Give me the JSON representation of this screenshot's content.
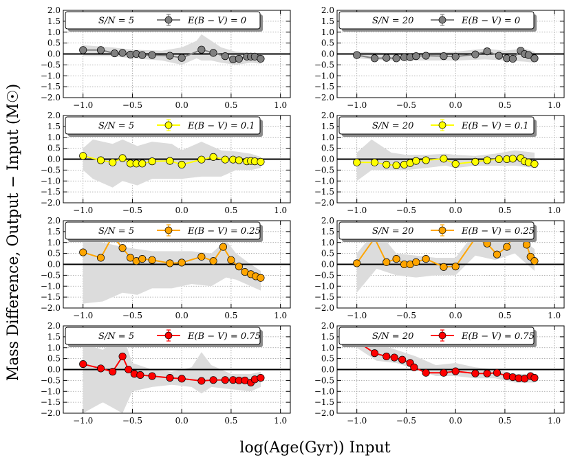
{
  "figure": {
    "xlabel": "log(Age(Gyr)) Input",
    "ylabel": "Mass Difference, Output − Input (M☉)"
  },
  "colors": {
    "grid": "#9a9a9a",
    "band": "#dcdcdc",
    "zero_line": "#000000",
    "legend_shadow": "#8c8c8c"
  },
  "chart_data": [
    {
      "type": "line",
      "panel": "r0c0",
      "row": 0,
      "col": 0,
      "sn_label": "S/N = 5",
      "ebv_label": "E(B − V) = 0",
      "color": "#808080",
      "xlim": [
        -1.2,
        1.1
      ],
      "ylim": [
        -2.0,
        2.0
      ],
      "x": [
        -1.0,
        -0.82,
        -0.68,
        -0.6,
        -0.52,
        -0.46,
        -0.4,
        -0.3,
        -0.12,
        0.0,
        0.2,
        0.32,
        0.44,
        0.52,
        0.58,
        0.66,
        0.7,
        0.74,
        0.8
      ],
      "y": [
        0.18,
        0.18,
        0.03,
        0.05,
        -0.03,
        0.0,
        -0.05,
        -0.05,
        -0.08,
        -0.18,
        0.2,
        0.05,
        -0.1,
        -0.25,
        -0.22,
        -0.12,
        -0.12,
        -0.12,
        -0.22
      ],
      "band_x": [
        -1.0,
        -0.7,
        -0.5,
        -0.2,
        0.0,
        0.15,
        0.2,
        0.3,
        0.4,
        0.55,
        0.7,
        0.8
      ],
      "band_upper": [
        0.4,
        0.3,
        0.2,
        0.15,
        0.3,
        0.6,
        0.9,
        0.6,
        0.3,
        0.1,
        0.05,
        0.0
      ],
      "band_lower": [
        -0.1,
        -0.1,
        -0.2,
        -0.3,
        -0.5,
        -0.2,
        -0.3,
        -0.3,
        -0.4,
        -0.5,
        -0.4,
        -0.45
      ],
      "xticks": [
        "−1.0",
        "−0.5",
        "0.0",
        "0.5",
        "1.0"
      ],
      "yticks": [
        "2.0",
        "1.5",
        "1.0",
        "0.5",
        "0.0",
        "−0.5",
        "−1.0",
        "−1.5",
        "−2.0"
      ]
    },
    {
      "type": "line",
      "panel": "r0c1",
      "row": 0,
      "col": 1,
      "sn_label": "S/N = 20",
      "ebv_label": "E(B − V) = 0",
      "color": "#808080",
      "xlim": [
        -1.2,
        1.1
      ],
      "ylim": [
        -2.0,
        2.0
      ],
      "x": [
        -1.0,
        -0.82,
        -0.7,
        -0.6,
        -0.52,
        -0.46,
        -0.4,
        -0.3,
        -0.12,
        0.0,
        0.2,
        0.32,
        0.44,
        0.52,
        0.58,
        0.66,
        0.7,
        0.74,
        0.8
      ],
      "y": [
        -0.05,
        -0.2,
        -0.18,
        -0.2,
        -0.15,
        -0.15,
        -0.1,
        -0.08,
        -0.1,
        -0.12,
        -0.02,
        0.12,
        -0.08,
        -0.2,
        -0.22,
        0.15,
        0.0,
        -0.05,
        -0.2
      ],
      "band_x": [
        -1.0,
        -0.7,
        -0.4,
        0.0,
        0.3,
        0.5,
        0.7,
        0.8
      ],
      "band_upper": [
        0.1,
        0.05,
        0.05,
        0.1,
        0.25,
        0.15,
        0.25,
        0.1
      ],
      "band_lower": [
        -0.2,
        -0.3,
        -0.3,
        -0.3,
        -0.25,
        -0.3,
        -0.35,
        -0.4
      ],
      "xticks": [
        "−1.0",
        "−0.5",
        "0.0",
        "0.5",
        "1.0"
      ],
      "yticks": [
        "2.0",
        "1.5",
        "1.0",
        "0.5",
        "0.0",
        "−0.5",
        "−1.0",
        "−1.5",
        "−2.0"
      ]
    },
    {
      "type": "line",
      "panel": "r1c0",
      "row": 1,
      "col": 0,
      "sn_label": "S/N = 5",
      "ebv_label": "E(B − V) = 0.1",
      "color": "#ffff00",
      "xlim": [
        -1.2,
        1.1
      ],
      "ylim": [
        -2.0,
        2.0
      ],
      "x": [
        -1.0,
        -0.82,
        -0.7,
        -0.6,
        -0.52,
        -0.46,
        -0.4,
        -0.3,
        -0.12,
        0.0,
        0.2,
        0.32,
        0.44,
        0.52,
        0.58,
        0.66,
        0.7,
        0.74,
        0.8
      ],
      "y": [
        0.15,
        -0.05,
        -0.15,
        0.05,
        -0.2,
        -0.2,
        -0.2,
        -0.1,
        -0.08,
        -0.25,
        -0.02,
        0.1,
        -0.02,
        -0.02,
        -0.05,
        -0.1,
        -0.08,
        -0.1,
        -0.12
      ],
      "band_x": [
        -1.0,
        -0.9,
        -0.7,
        -0.6,
        -0.45,
        -0.3,
        -0.1,
        0.0,
        0.2,
        0.4,
        0.55,
        0.7,
        0.8
      ],
      "band_upper": [
        0.5,
        0.9,
        0.7,
        0.9,
        0.6,
        0.8,
        0.7,
        0.4,
        0.8,
        0.4,
        0.35,
        0.25,
        0.1
      ],
      "band_lower": [
        -0.5,
        -0.9,
        -1.3,
        -1.0,
        -1.2,
        -0.9,
        -0.9,
        -0.9,
        -0.8,
        -0.8,
        -0.5,
        -0.5,
        -0.4
      ],
      "xticks": [
        "−1.0",
        "−0.5",
        "0.0",
        "0.5",
        "1.0"
      ],
      "yticks": [
        "2.0",
        "1.5",
        "1.0",
        "0.5",
        "0.0",
        "−0.5",
        "−1.0",
        "−1.5",
        "−2.0"
      ]
    },
    {
      "type": "line",
      "panel": "r1c1",
      "row": 1,
      "col": 1,
      "sn_label": "S/N = 20",
      "ebv_label": "E(B − V) = 0.1",
      "color": "#ffff00",
      "xlim": [
        -1.2,
        1.1
      ],
      "ylim": [
        -2.0,
        2.0
      ],
      "x": [
        -1.0,
        -0.82,
        -0.7,
        -0.6,
        -0.52,
        -0.46,
        -0.4,
        -0.3,
        -0.12,
        0.0,
        0.2,
        0.32,
        0.44,
        0.52,
        0.58,
        0.66,
        0.7,
        0.74,
        0.8
      ],
      "y": [
        -0.15,
        -0.15,
        -0.25,
        -0.28,
        -0.25,
        -0.18,
        -0.08,
        -0.05,
        0.02,
        -0.22,
        -0.12,
        -0.05,
        0.0,
        0.0,
        0.02,
        0.05,
        -0.1,
        -0.15,
        -0.22
      ],
      "band_x": [
        -1.0,
        -0.85,
        -0.65,
        -0.5,
        -0.3,
        -0.1,
        0.0,
        0.2,
        0.4,
        0.6,
        0.8
      ],
      "band_upper": [
        0.3,
        0.9,
        0.3,
        0.2,
        0.2,
        0.25,
        0.2,
        0.15,
        0.25,
        0.4,
        0.3
      ],
      "band_lower": [
        -1.0,
        -0.5,
        -0.5,
        -0.5,
        -0.4,
        -0.3,
        -0.4,
        -0.3,
        -0.3,
        -0.3,
        -0.4
      ],
      "xticks": [
        "−1.0",
        "−0.5",
        "0.0",
        "0.5",
        "1.0"
      ],
      "yticks": [
        "2.0",
        "1.5",
        "1.0",
        "0.5",
        "0.0",
        "−0.5",
        "−1.0",
        "−1.5",
        "−2.0"
      ]
    },
    {
      "type": "line",
      "panel": "r2c0",
      "row": 2,
      "col": 0,
      "sn_label": "S/N = 5",
      "ebv_label": "E(B − V) = 0.25",
      "color": "#ffa500",
      "xlim": [
        -1.2,
        1.1
      ],
      "ylim": [
        -2.0,
        2.0
      ],
      "x": [
        -1.0,
        -0.82,
        -0.7,
        -0.6,
        -0.52,
        -0.46,
        -0.4,
        -0.3,
        -0.12,
        0.0,
        0.2,
        0.32,
        0.42,
        0.5,
        0.58,
        0.64,
        0.7,
        0.75,
        0.8
      ],
      "y": [
        0.55,
        0.3,
        1.3,
        0.75,
        0.3,
        0.15,
        0.25,
        0.2,
        0.05,
        0.08,
        0.35,
        0.15,
        0.8,
        0.2,
        -0.1,
        -0.35,
        -0.45,
        -0.55,
        -0.62
      ],
      "band_x": [
        -1.0,
        -0.8,
        -0.6,
        -0.45,
        -0.3,
        -0.1,
        0.1,
        0.3,
        0.45,
        0.55,
        0.7,
        0.8
      ],
      "band_upper": [
        1.3,
        1.0,
        0.8,
        0.7,
        0.6,
        0.6,
        0.6,
        0.5,
        1.1,
        0.5,
        0.0,
        -0.3
      ],
      "band_lower": [
        -1.8,
        -1.7,
        -1.3,
        -1.4,
        -1.1,
        -1.1,
        -0.9,
        -1.0,
        -0.6,
        -0.7,
        -1.0,
        -1.2
      ],
      "xticks": [
        "−1.0",
        "−0.5",
        "0.0",
        "0.5",
        "1.0"
      ],
      "yticks": [
        "2.0",
        "1.5",
        "1.0",
        "0.5",
        "0.0",
        "−0.5",
        "−1.0",
        "−1.5",
        "−2.0"
      ]
    },
    {
      "type": "line",
      "panel": "r2c1",
      "row": 2,
      "col": 1,
      "sn_label": "S/N = 20",
      "ebv_label": "E(B − V) = 0.25",
      "color": "#ffa500",
      "xlim": [
        -1.2,
        1.1
      ],
      "ylim": [
        -2.0,
        2.0
      ],
      "x": [
        -1.0,
        -0.82,
        -0.7,
        -0.6,
        -0.52,
        -0.46,
        -0.4,
        -0.3,
        -0.12,
        0.0,
        0.2,
        0.32,
        0.42,
        0.52,
        0.58,
        0.66,
        0.72,
        0.76,
        0.8
      ],
      "y": [
        0.05,
        1.2,
        0.1,
        0.25,
        0.0,
        0.0,
        0.1,
        0.25,
        -0.12,
        -0.1,
        1.2,
        0.95,
        0.45,
        0.8,
        1.25,
        1.3,
        0.9,
        0.35,
        0.15
      ],
      "band_x": [
        -1.0,
        -0.8,
        -0.6,
        -0.4,
        -0.2,
        0.0,
        0.2,
        0.4,
        0.6,
        0.8
      ],
      "band_upper": [
        0.5,
        1.6,
        0.5,
        0.4,
        0.3,
        0.3,
        1.5,
        1.2,
        1.4,
        0.7
      ],
      "band_lower": [
        -1.3,
        -0.2,
        -0.5,
        -0.6,
        -0.5,
        -0.5,
        0.4,
        0.2,
        0.5,
        -0.3
      ],
      "xticks": [
        "−1.0",
        "−0.5",
        "0.0",
        "0.5",
        "1.0"
      ],
      "yticks": [
        "2.0",
        "1.5",
        "1.0",
        "0.5",
        "0.0",
        "−0.5",
        "−1.0",
        "−1.5",
        "−2.0"
      ]
    },
    {
      "type": "line",
      "panel": "r3c0",
      "row": 3,
      "col": 0,
      "sn_label": "S/N = 5",
      "ebv_label": "E(B − V) = 0.75",
      "color": "#ff0000",
      "xlim": [
        -1.2,
        1.1
      ],
      "ylim": [
        -2.0,
        2.0
      ],
      "x": [
        -1.0,
        -0.82,
        -0.7,
        -0.6,
        -0.54,
        -0.48,
        -0.42,
        -0.3,
        -0.12,
        0.0,
        0.2,
        0.32,
        0.44,
        0.52,
        0.58,
        0.64,
        0.7,
        0.74,
        0.8
      ],
      "y": [
        0.25,
        0.05,
        -0.1,
        0.6,
        0.0,
        -0.2,
        -0.25,
        -0.3,
        -0.38,
        -0.42,
        -0.52,
        -0.48,
        -0.48,
        -0.48,
        -0.5,
        -0.5,
        -0.6,
        -0.45,
        -0.38
      ],
      "band_x": [
        -1.0,
        -0.8,
        -0.6,
        -0.5,
        -0.3,
        -0.1,
        0.1,
        0.2,
        0.3,
        0.5,
        0.7,
        0.8
      ],
      "band_upper": [
        1.2,
        0.9,
        1.6,
        0.3,
        0.0,
        -0.1,
        0.1,
        0.8,
        0.2,
        -0.2,
        -0.2,
        -0.1
      ],
      "band_lower": [
        -2.0,
        -1.5,
        -2.0,
        -1.0,
        -0.8,
        -0.7,
        -0.8,
        -1.1,
        -0.8,
        -0.9,
        -1.0,
        -0.8
      ],
      "xticks": [
        "−1.0",
        "−0.5",
        "0.0",
        "0.5",
        "1.0"
      ],
      "yticks": [
        "2.0",
        "1.5",
        "1.0",
        "0.5",
        "0.0",
        "−0.5",
        "−1.0",
        "−1.5",
        "−2.0"
      ]
    },
    {
      "type": "line",
      "panel": "r3c1",
      "row": 3,
      "col": 1,
      "sn_label": "S/N = 20",
      "ebv_label": "E(B − V) = 0.75",
      "color": "#ff0000",
      "xlim": [
        -1.2,
        1.1
      ],
      "ylim": [
        -2.0,
        2.0
      ],
      "x": [
        -1.0,
        -0.82,
        -0.7,
        -0.62,
        -0.54,
        -0.46,
        -0.42,
        -0.3,
        -0.12,
        0.0,
        0.2,
        0.32,
        0.42,
        0.52,
        0.58,
        0.64,
        0.7,
        0.76,
        0.8
      ],
      "y": [
        1.3,
        0.75,
        0.6,
        0.55,
        0.45,
        0.3,
        0.1,
        -0.15,
        -0.15,
        -0.08,
        -0.18,
        -0.18,
        -0.15,
        -0.3,
        -0.35,
        -0.4,
        -0.42,
        -0.3,
        -0.38
      ],
      "band_x": [
        -1.0,
        -0.8,
        -0.6,
        -0.4,
        -0.2,
        0.0,
        0.2,
        0.4,
        0.6,
        0.8
      ],
      "band_upper": [
        1.6,
        1.2,
        0.9,
        0.6,
        0.2,
        0.3,
        0.1,
        0.0,
        -0.2,
        -0.2
      ],
      "band_lower": [
        1.0,
        0.4,
        0.3,
        0.0,
        -0.3,
        -0.3,
        -0.4,
        -0.4,
        -0.6,
        -0.6
      ],
      "xticks": [
        "−1.0",
        "−0.5",
        "0.0",
        "0.5",
        "1.0"
      ],
      "yticks": [
        "2.0",
        "1.5",
        "1.0",
        "0.5",
        "0.0",
        "−0.5",
        "−1.0",
        "−1.5",
        "−2.0"
      ]
    }
  ]
}
